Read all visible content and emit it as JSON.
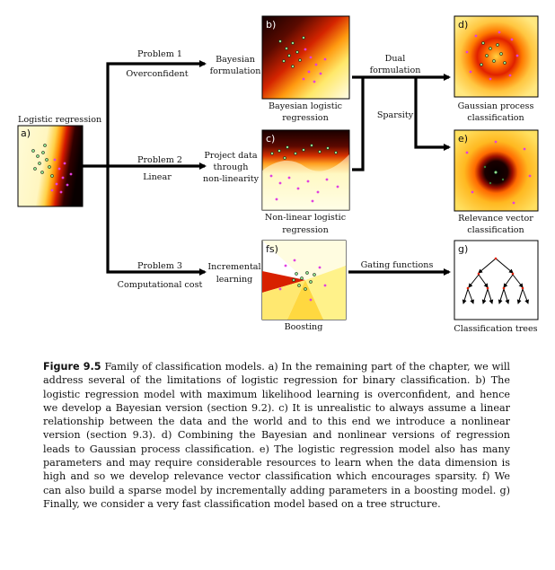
{
  "nodes": {
    "logistic": "Logistic regression",
    "bayesian_formulation": [
      "Bayesian",
      "formulation"
    ],
    "project_data": [
      "Project data",
      "through",
      "non-linearity"
    ],
    "incremental_learning": [
      "Incremental",
      "learning"
    ],
    "bayesian_logistic": [
      "Bayesian logistic",
      "regression"
    ],
    "nonlinear_logistic": [
      "Non-linear logistic",
      "regression"
    ],
    "boosting": "Boosting",
    "gp_classification": [
      "Gaussian process",
      "classification"
    ],
    "rv_classification": [
      "Relevance vector",
      "classification"
    ],
    "classification_trees": "Classification trees"
  },
  "edges": {
    "problem1": [
      "Problem 1",
      "Overconfident"
    ],
    "problem2": [
      "Problem 2",
      "Linear"
    ],
    "problem3": [
      "Problem 3",
      "Computational cost"
    ],
    "dual_formulation": [
      "Dual",
      "formulation"
    ],
    "sparsity": "Sparsity",
    "gating_functions": "Gating functions"
  },
  "panel_labels": {
    "a": "a)",
    "b": "b)",
    "c": "c)",
    "d": "d)",
    "e": "e)",
    "f": "fs)",
    "g": "g)"
  },
  "caption": {
    "figure_label": "Figure 9.5",
    "text": "Family of classification models. a) In the remaining part of the chapter, we will address several of the limitations of logistic regression for binary classification. b) The logistic regression model with maximum likelihood learning is overconfident, and hence we develop a Bayesian version (section 9.2). c) It is unrealistic to always assume a linear relationship between the data and the world and to this end we introduce a nonlinear version (section 9.3). d) Combining the Bayesian and nonlinear versions of regression leads to Gaussian process classification. e) The logistic regression model also has many parameters and may require considerable resources to learn when the data dimension is high and so we develop relevance vector classification which encourages sparsity. f) We can also build a sparse model by incrementally adding parameters in a boosting model. g) Finally, we consider a very fast classification model based on a tree structure."
  },
  "colors": {
    "dark": "#1a0000",
    "red": "#cc1800",
    "orange": "#ff8a00",
    "yellow": "#ffe64a",
    "pale": "#fffbd8",
    "green_point": "#8ee08e",
    "magenta_point": "#e040e0"
  }
}
